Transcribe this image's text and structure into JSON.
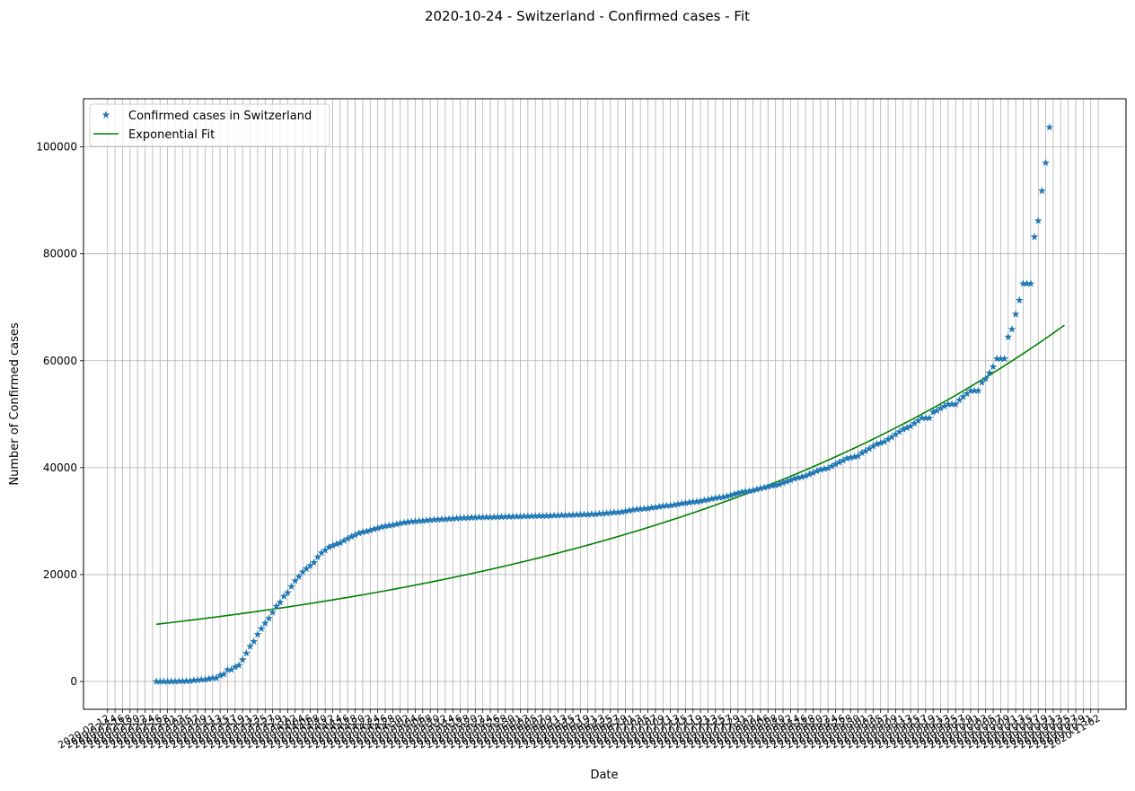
{
  "chart_data": {
    "type": "line",
    "title": "2020-10-24 - Switzerland - Confirmed cases - Fit",
    "xlabel": "Date",
    "ylabel": "Number of Confirmed cases",
    "x_range": [
      "2020-02-12",
      "2020-11-03"
    ],
    "ylim": [
      -5200,
      109000
    ],
    "y_ticks": [
      0,
      20000,
      40000,
      60000,
      80000,
      100000
    ],
    "y_tick_labels": [
      "0",
      "20000",
      "40000",
      "60000",
      "80000",
      "100000"
    ],
    "x_tick_start": "2020-02-12",
    "x_tick_end": "2020-11-03",
    "x_tick_step_days": 2,
    "grid": true,
    "legend_position": "upper-left",
    "series": [
      {
        "name": "Confirmed cases in Switzerland",
        "style": "star-markers",
        "color": "#1f77b4",
        "start_date": "2020-02-25",
        "end_date": "2020-10-24",
        "x_step_days": 1,
        "values": [
          1,
          1,
          8,
          8,
          18,
          27,
          42,
          56,
          90,
          114,
          214,
          268,
          337,
          374,
          491,
          652,
          652,
          1139,
          1359,
          2200,
          2200,
          2700,
          3028,
          4075,
          5294,
          6575,
          7474,
          8795,
          9877,
          10897,
          11811,
          12928,
          14076,
          14829,
          15922,
          16605,
          17768,
          18827,
          19606,
          20505,
          21100,
          21657,
          22253,
          23280,
          24051,
          24551,
          25107,
          25415,
          25688,
          25936,
          26336,
          26732,
          27078,
          27404,
          27740,
          27944,
          28063,
          28268,
          28496,
          28677,
          28894,
          29061,
          29164,
          29264,
          29407,
          29586,
          29705,
          29817,
          29905,
          29981,
          30009,
          30060,
          30126,
          30207,
          30251,
          30305,
          30344,
          30380,
          30413,
          30463,
          30514,
          30572,
          30597,
          30618,
          30658,
          30694,
          30707,
          30725,
          30736,
          30746,
          30761,
          30776,
          30796,
          30828,
          30845,
          30862,
          30871,
          30874,
          30893,
          30913,
          30936,
          30956,
          30965,
          30972,
          30988,
          31011,
          31044,
          31063,
          31094,
          31117,
          31131,
          31154,
          31187,
          31217,
          31235,
          31243,
          31292,
          31310,
          31376,
          31428,
          31486,
          31555,
          31617,
          31652,
          31714,
          31851,
          31967,
          32101,
          32198,
          32268,
          32315,
          32369,
          32498,
          32586,
          32690,
          32817,
          32883,
          32946,
          33016,
          33148,
          33290,
          33382,
          33492,
          33591,
          33634,
          33742,
          33883,
          34000,
          34154,
          34302,
          34412,
          34477,
          34609,
          34802,
          35022,
          35232,
          35412,
          35550,
          35616,
          35746,
          35927,
          36108,
          36269,
          36451,
          36603,
          36708,
          36861,
          37169,
          37403,
          37671,
          37924,
          38124,
          38252,
          38449,
          38760,
          39026,
          39332,
          39627,
          39761,
          39903,
          40262,
          40645,
          41006,
          41346,
          41722,
          41879,
          42014,
          42177,
          42763,
          43127,
          43532,
          44001,
          44401,
          44592,
          44837,
          45306,
          45711,
          46239,
          46704,
          47179,
          47436,
          47751,
          48265,
          48795,
          49283,
          49283,
          49283,
          50378,
          50664,
          51101,
          51492,
          51864,
          51864,
          51864,
          52646,
          53282,
          53832,
          54384,
          54384,
          54384,
          55932,
          56632,
          57709,
          58881,
          60368,
          60368,
          60368,
          64436,
          65881,
          68704,
          71317,
          74422,
          74422,
          74422,
          83159,
          86167,
          91763,
          97019,
          103653
        ]
      },
      {
        "name": "Exponential Fit",
        "style": "line",
        "color": "#008000",
        "start_date": "2020-02-25",
        "end_date": "2020-10-24",
        "model": "y = a * exp(b * days_since_start)",
        "a": 10700,
        "b": 0.007559
      }
    ]
  }
}
